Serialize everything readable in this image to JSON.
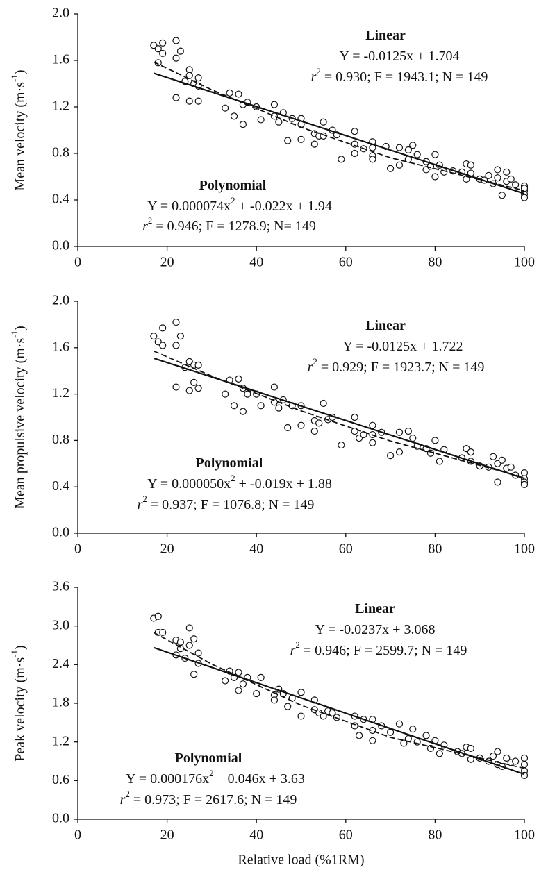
{
  "chart_data": [
    {
      "type": "scatter",
      "ylabel": [
        {
          "text": "Mean velocity (m·s"
        },
        {
          "text": "-1",
          "format": "sup"
        },
        {
          "text": ")"
        }
      ],
      "xlim": [
        0,
        100
      ],
      "xticks": [
        0,
        20,
        40,
        60,
        80,
        100
      ],
      "ylim": [
        0,
        2
      ],
      "yticks": [
        {
          "value": 0,
          "label": "0.0"
        },
        {
          "value": 0.4,
          "label": "0.4"
        },
        {
          "value": 0.8,
          "label": "0.8"
        },
        {
          "value": 1.2,
          "label": "1.2"
        },
        {
          "value": 1.6,
          "label": "1.6"
        },
        {
          "value": 2,
          "label": "2.0"
        }
      ],
      "x": [
        17,
        18,
        19,
        19,
        18,
        22,
        22,
        23,
        22,
        24,
        25,
        25,
        25,
        26,
        27,
        27,
        27,
        33,
        34,
        35,
        36,
        37,
        37,
        38,
        40,
        41,
        44,
        44,
        45,
        46,
        47,
        48,
        50,
        50,
        50,
        53,
        53,
        54,
        55,
        55,
        57,
        58,
        59,
        62,
        62,
        62,
        64,
        66,
        66,
        66,
        66,
        69,
        70,
        72,
        72,
        74,
        74,
        75,
        76,
        78,
        78,
        79,
        80,
        80,
        81,
        82,
        84,
        86,
        87,
        87,
        88,
        88,
        90,
        91,
        92,
        93,
        94,
        94,
        95,
        96,
        96,
        97,
        98,
        100,
        100,
        100,
        100,
        100
      ],
      "values": [
        1.73,
        1.7,
        1.75,
        1.66,
        1.58,
        1.77,
        1.62,
        1.68,
        1.28,
        1.42,
        1.52,
        1.47,
        1.25,
        1.4,
        1.45,
        1.25,
        1.38,
        1.19,
        1.32,
        1.12,
        1.31,
        1.05,
        1.22,
        1.24,
        1.2,
        1.09,
        1.22,
        1.12,
        1.07,
        1.15,
        0.91,
        1.1,
        1.1,
        0.92,
        1.05,
        0.97,
        0.88,
        0.95,
        1.07,
        0.95,
        1,
        0.96,
        0.75,
        0.99,
        0.88,
        0.8,
        0.84,
        0.9,
        0.78,
        0.85,
        0.75,
        0.86,
        0.67,
        0.85,
        0.7,
        0.83,
        0.75,
        0.87,
        0.79,
        0.73,
        0.66,
        0.69,
        0.79,
        0.6,
        0.7,
        0.64,
        0.65,
        0.64,
        0.71,
        0.58,
        0.7,
        0.63,
        0.58,
        0.57,
        0.61,
        0.54,
        0.66,
        0.59,
        0.44,
        0.64,
        0.56,
        0.58,
        0.53,
        0.52,
        0.48,
        0.45,
        0.42,
        0.5
      ],
      "fits": [
        {
          "style": "solid",
          "x": [
            17,
            100
          ],
          "values": [
            1.49,
            0.454
          ]
        },
        {
          "style": "dashed",
          "x": [
            17,
            30,
            50,
            70,
            100
          ],
          "values": [
            1.587,
            1.347,
            1.025,
            0.763,
            0.48
          ]
        }
      ],
      "annotations": [
        [
          {
            "text": "Linear",
            "format": "bold"
          }
        ],
        [
          {
            "text": "Y = -0.0125x + 1.704"
          }
        ],
        [
          {
            "text": "r",
            "format": "italic"
          },
          {
            "text": "2",
            "format": "sup"
          },
          {
            "text": " = 0.930; F = 1943.1; N = 149"
          }
        ],
        [
          {
            "text": "Polynomial",
            "format": "bold"
          }
        ],
        [
          {
            "text": "Y = 0.000074x"
          },
          {
            "text": "2",
            "format": "sup"
          },
          {
            "text": " + -0.022x + 1.94"
          }
        ],
        [
          {
            "text": "r",
            "format": "italic"
          },
          {
            "text": "2",
            "format": "sup"
          },
          {
            "text": " = 0.946; F = 1278.9; N= 149"
          }
        ]
      ]
    },
    {
      "type": "scatter",
      "ylabel": [
        {
          "text": "Mean propulsive velocity (m·s"
        },
        {
          "text": "-1",
          "format": "sup"
        },
        {
          "text": ")"
        }
      ],
      "xlim": [
        0,
        100
      ],
      "xticks": [
        0,
        20,
        40,
        60,
        80,
        100
      ],
      "ylim": [
        0,
        2
      ],
      "yticks": [
        {
          "value": 0,
          "label": "0.0"
        },
        {
          "value": 0.4,
          "label": "0.4"
        },
        {
          "value": 0.8,
          "label": "0.8"
        },
        {
          "value": 1.2,
          "label": "1.2"
        },
        {
          "value": 1.6,
          "label": "1.6"
        },
        {
          "value": 2,
          "label": "2.0"
        }
      ],
      "x": [
        17,
        18,
        19,
        19,
        22,
        22,
        23,
        22,
        24,
        25,
        25,
        26,
        26,
        27,
        27,
        33,
        34,
        35,
        36,
        37,
        37,
        38,
        40,
        41,
        44,
        44,
        45,
        46,
        47,
        48,
        50,
        50,
        53,
        53,
        54,
        55,
        56,
        57,
        59,
        62,
        62,
        63,
        64,
        66,
        66,
        66,
        68,
        70,
        72,
        72,
        74,
        75,
        76,
        78,
        79,
        80,
        81,
        82,
        86,
        87,
        88,
        88,
        90,
        92,
        93,
        94,
        94,
        95,
        96,
        97,
        98,
        100,
        100,
        100,
        100
      ],
      "values": [
        1.7,
        1.65,
        1.77,
        1.62,
        1.82,
        1.62,
        1.7,
        1.26,
        1.43,
        1.48,
        1.23,
        1.45,
        1.3,
        1.45,
        1.25,
        1.2,
        1.32,
        1.1,
        1.33,
        1.05,
        1.25,
        1.2,
        1.2,
        1.1,
        1.26,
        1.13,
        1.08,
        1.15,
        0.91,
        1.1,
        1.1,
        0.93,
        0.97,
        0.88,
        0.95,
        1.12,
        0.98,
        1,
        0.76,
        1,
        0.88,
        0.82,
        0.85,
        0.93,
        0.78,
        0.85,
        0.87,
        0.67,
        0.87,
        0.7,
        0.88,
        0.82,
        0.75,
        0.73,
        0.69,
        0.8,
        0.62,
        0.72,
        0.65,
        0.73,
        0.7,
        0.62,
        0.58,
        0.57,
        0.66,
        0.6,
        0.44,
        0.63,
        0.56,
        0.57,
        0.5,
        0.52,
        0.47,
        0.44,
        0.42
      ],
      "fits": [
        {
          "style": "solid",
          "x": [
            17,
            100
          ],
          "values": [
            1.5095,
            0.472
          ]
        },
        {
          "style": "dashed",
          "x": [
            17,
            30,
            50,
            70,
            100
          ],
          "values": [
            1.571,
            1.355,
            1.055,
            0.795,
            0.48
          ]
        }
      ],
      "annotations": [
        [
          {
            "text": "Linear",
            "format": "bold"
          }
        ],
        [
          {
            "text": "Y = -0.0125x + 1.722"
          }
        ],
        [
          {
            "text": "r",
            "format": "italic"
          },
          {
            "text": "2",
            "format": "sup"
          },
          {
            "text": " = 0.929; F = 1923.7; N = 149"
          }
        ],
        [
          {
            "text": "Polynomial",
            "format": "bold"
          }
        ],
        [
          {
            "text": "Y = 0.000050x"
          },
          {
            "text": "2",
            "format": "sup"
          },
          {
            "text": " + -0.019x + 1.88"
          }
        ],
        [
          {
            "text": "r",
            "format": "italic"
          },
          {
            "text": "2",
            "format": "sup"
          },
          {
            "text": " = 0.937; F = 1076.8; N = 149"
          }
        ]
      ]
    },
    {
      "type": "scatter",
      "ylabel": [
        {
          "text": "Peak velocity (m·s"
        },
        {
          "text": "-1",
          "format": "sup"
        },
        {
          "text": ")"
        }
      ],
      "xlabel": "Relative load (%1RM)",
      "xlim": [
        0,
        100
      ],
      "xticks": [
        0,
        20,
        40,
        60,
        80,
        100
      ],
      "ylim": [
        0,
        3.6
      ],
      "yticks": [
        {
          "value": 0,
          "label": "0.0"
        },
        {
          "value": 0.6,
          "label": "0.6"
        },
        {
          "value": 1.2,
          "label": "1.2"
        },
        {
          "value": 1.8,
          "label": "1.8"
        },
        {
          "value": 2.4,
          "label": "2.4"
        },
        {
          "value": 3,
          "label": "3.0"
        },
        {
          "value": 3.6,
          "label": "3.6"
        }
      ],
      "x": [
        17,
        18,
        18,
        19,
        22,
        22,
        23,
        23,
        24,
        25,
        25,
        26,
        26,
        27,
        27,
        33,
        34,
        35,
        36,
        36,
        37,
        38,
        40,
        41,
        44,
        44,
        45,
        46,
        47,
        48,
        50,
        50,
        53,
        53,
        54,
        55,
        56,
        57,
        58,
        62,
        62,
        63,
        64,
        66,
        66,
        66,
        68,
        70,
        72,
        73,
        74,
        75,
        76,
        78,
        79,
        80,
        81,
        82,
        85,
        86,
        87,
        88,
        88,
        90,
        92,
        93,
        94,
        94,
        95,
        96,
        97,
        98,
        100,
        100,
        100,
        100
      ],
      "values": [
        3.12,
        3.15,
        2.9,
        2.9,
        2.78,
        2.55,
        2.75,
        2.65,
        2.5,
        2.97,
        2.7,
        2.8,
        2.25,
        2.58,
        2.42,
        2.15,
        2.3,
        2.2,
        2.28,
        2,
        2.1,
        2.2,
        1.95,
        2.2,
        1.93,
        1.85,
        2.02,
        1.95,
        1.75,
        1.88,
        1.97,
        1.6,
        1.7,
        1.85,
        1.65,
        1.6,
        1.68,
        1.65,
        1.58,
        1.6,
        1.45,
        1.3,
        1.55,
        1.55,
        1.38,
        1.22,
        1.45,
        1.35,
        1.48,
        1.18,
        1.25,
        1.4,
        1.2,
        1.3,
        1.1,
        1.22,
        1.02,
        1.15,
        1.05,
        1.02,
        1.12,
        0.93,
        1.1,
        0.95,
        0.9,
        0.98,
        1.05,
        0.85,
        0.82,
        0.95,
        0.88,
        0.9,
        0.95,
        0.85,
        0.75,
        0.68
      ],
      "fits": [
        {
          "style": "solid",
          "x": [
            17,
            100
          ],
          "values": [
            2.665,
            0.698
          ]
        },
        {
          "style": "dashed",
          "x": [
            17,
            30,
            50,
            70,
            100
          ],
          "values": [
            2.899,
            2.408,
            1.77,
            1.272,
            0.79
          ]
        }
      ],
      "annotations": [
        [
          {
            "text": "Linear",
            "format": "bold"
          }
        ],
        [
          {
            "text": "Y = -0.0237x + 3.068"
          }
        ],
        [
          {
            "text": "r",
            "format": "italic"
          },
          {
            "text": "2",
            "format": "sup"
          },
          {
            "text": " = 0.946; F = 2599.7; N = 149"
          }
        ],
        [
          {
            "text": "Polynomial",
            "format": "bold"
          }
        ],
        [
          {
            "text": "Y = 0.000176x"
          },
          {
            "text": "2",
            "format": "sup"
          },
          {
            "text": " – 0.046x + 3.63"
          }
        ],
        [
          {
            "text": "r",
            "format": "italic"
          },
          {
            "text": "2",
            "format": "sup"
          },
          {
            "text": " = 0.973; F = 2617.6; N = 149"
          }
        ]
      ]
    }
  ]
}
